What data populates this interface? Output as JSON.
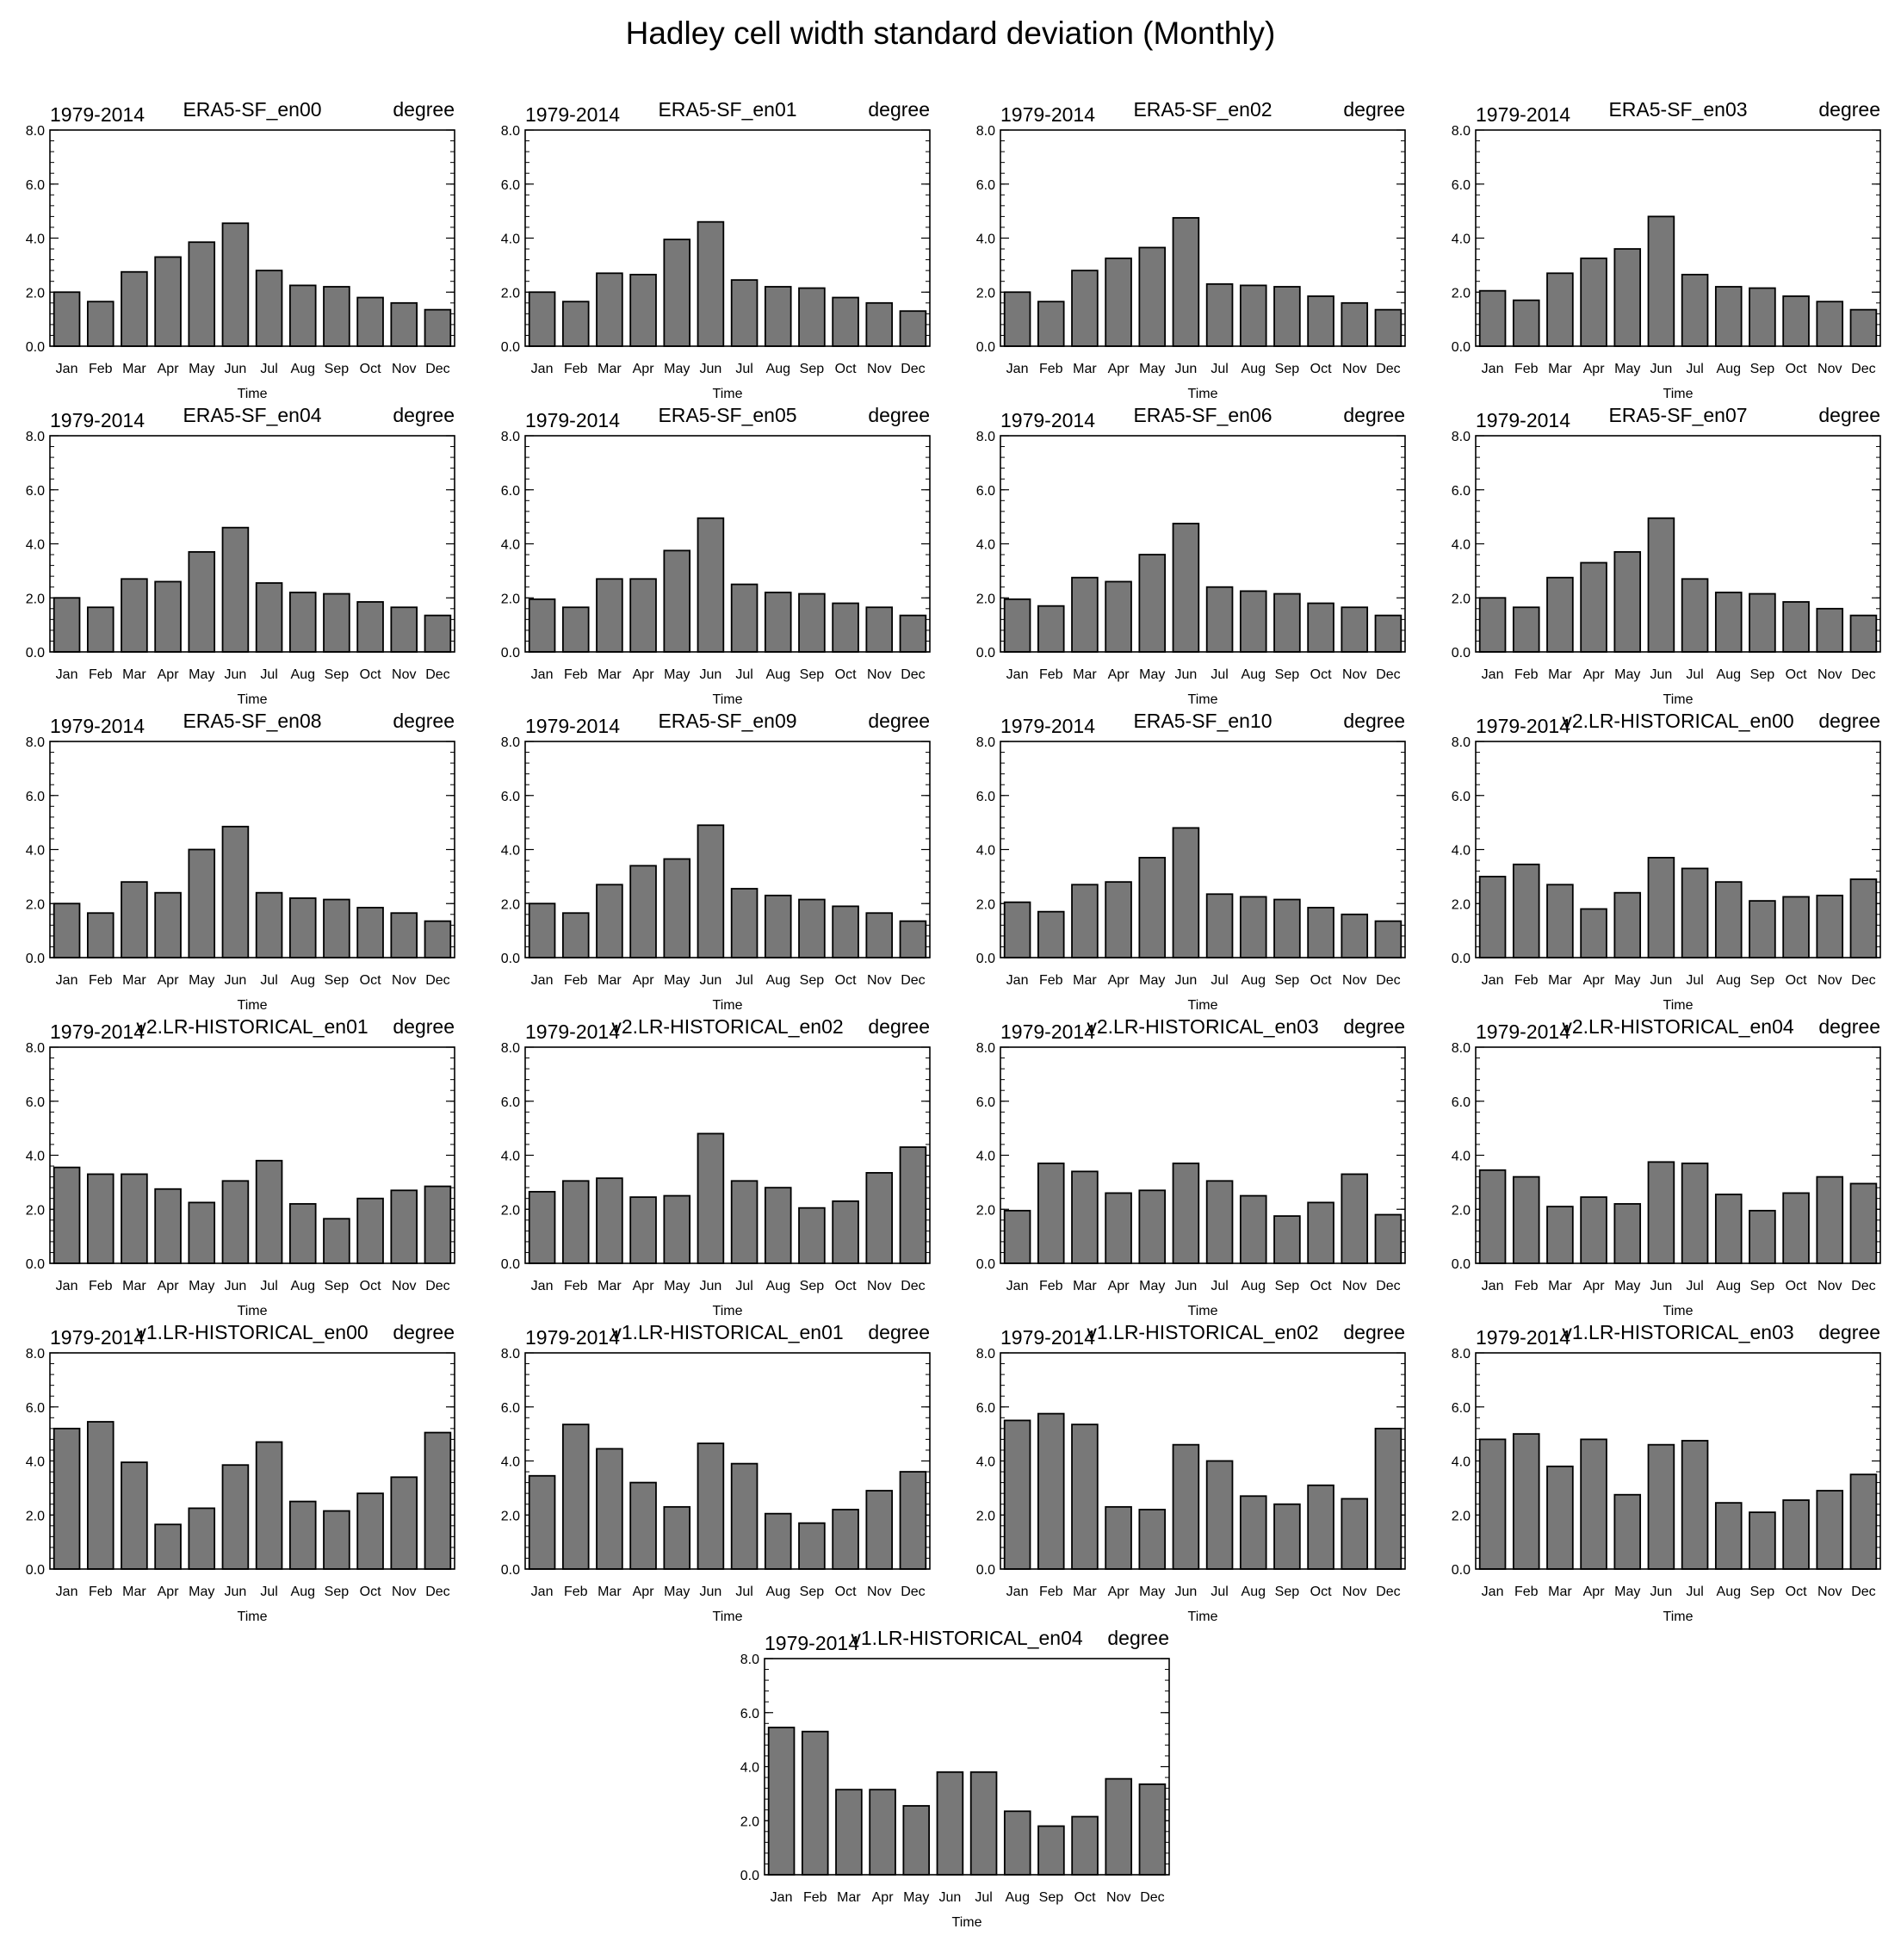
{
  "figure": {
    "title": "Hadley cell width standard deviation (Monthly)"
  },
  "chart_data": [
    {
      "type": "bar",
      "left_title": "1979-2014",
      "title": "ERA5-SF_en00",
      "right_title": "degree",
      "xlabel": "Time",
      "categories": [
        "Jan",
        "Feb",
        "Mar",
        "Apr",
        "May",
        "Jun",
        "Jul",
        "Aug",
        "Sep",
        "Oct",
        "Nov",
        "Dec"
      ],
      "values": [
        2.0,
        1.65,
        2.75,
        3.3,
        3.85,
        4.55,
        2.8,
        2.25,
        2.2,
        1.8,
        1.6,
        1.35
      ],
      "ylim": [
        0,
        8
      ],
      "yticks": [
        "0.0",
        "2.0",
        "4.0",
        "6.0",
        "8.0"
      ],
      "grid": false,
      "color": "#787878"
    },
    {
      "type": "bar",
      "left_title": "1979-2014",
      "title": "ERA5-SF_en01",
      "right_title": "degree",
      "xlabel": "Time",
      "categories": [
        "Jan",
        "Feb",
        "Mar",
        "Apr",
        "May",
        "Jun",
        "Jul",
        "Aug",
        "Sep",
        "Oct",
        "Nov",
        "Dec"
      ],
      "values": [
        2.0,
        1.65,
        2.7,
        2.65,
        3.95,
        4.6,
        2.45,
        2.2,
        2.15,
        1.8,
        1.6,
        1.3
      ],
      "ylim": [
        0,
        8
      ],
      "yticks": [
        "0.0",
        "2.0",
        "4.0",
        "6.0",
        "8.0"
      ],
      "grid": false,
      "color": "#787878"
    },
    {
      "type": "bar",
      "left_title": "1979-2014",
      "title": "ERA5-SF_en02",
      "right_title": "degree",
      "xlabel": "Time",
      "categories": [
        "Jan",
        "Feb",
        "Mar",
        "Apr",
        "May",
        "Jun",
        "Jul",
        "Aug",
        "Sep",
        "Oct",
        "Nov",
        "Dec"
      ],
      "values": [
        2.0,
        1.65,
        2.8,
        3.25,
        3.65,
        4.75,
        2.3,
        2.25,
        2.2,
        1.85,
        1.6,
        1.35
      ],
      "ylim": [
        0,
        8
      ],
      "yticks": [
        "0.0",
        "2.0",
        "4.0",
        "6.0",
        "8.0"
      ],
      "grid": false,
      "color": "#787878"
    },
    {
      "type": "bar",
      "left_title": "1979-2014",
      "title": "ERA5-SF_en03",
      "right_title": "degree",
      "xlabel": "Time",
      "categories": [
        "Jan",
        "Feb",
        "Mar",
        "Apr",
        "May",
        "Jun",
        "Jul",
        "Aug",
        "Sep",
        "Oct",
        "Nov",
        "Dec"
      ],
      "values": [
        2.05,
        1.7,
        2.7,
        3.25,
        3.6,
        4.8,
        2.65,
        2.2,
        2.15,
        1.85,
        1.65,
        1.35
      ],
      "ylim": [
        0,
        8
      ],
      "yticks": [
        "0.0",
        "2.0",
        "4.0",
        "6.0",
        "8.0"
      ],
      "grid": false,
      "color": "#787878"
    },
    {
      "type": "bar",
      "left_title": "1979-2014",
      "title": "ERA5-SF_en04",
      "right_title": "degree",
      "xlabel": "Time",
      "categories": [
        "Jan",
        "Feb",
        "Mar",
        "Apr",
        "May",
        "Jun",
        "Jul",
        "Aug",
        "Sep",
        "Oct",
        "Nov",
        "Dec"
      ],
      "values": [
        2.0,
        1.65,
        2.7,
        2.6,
        3.7,
        4.6,
        2.55,
        2.2,
        2.15,
        1.85,
        1.65,
        1.35
      ],
      "ylim": [
        0,
        8
      ],
      "yticks": [
        "0.0",
        "2.0",
        "4.0",
        "6.0",
        "8.0"
      ],
      "grid": false,
      "color": "#787878"
    },
    {
      "type": "bar",
      "left_title": "1979-2014",
      "title": "ERA5-SF_en05",
      "right_title": "degree",
      "xlabel": "Time",
      "categories": [
        "Jan",
        "Feb",
        "Mar",
        "Apr",
        "May",
        "Jun",
        "Jul",
        "Aug",
        "Sep",
        "Oct",
        "Nov",
        "Dec"
      ],
      "values": [
        1.95,
        1.65,
        2.7,
        2.7,
        3.75,
        4.95,
        2.5,
        2.2,
        2.15,
        1.8,
        1.65,
        1.35
      ],
      "ylim": [
        0,
        8
      ],
      "yticks": [
        "0.0",
        "2.0",
        "4.0",
        "6.0",
        "8.0"
      ],
      "grid": false,
      "color": "#787878"
    },
    {
      "type": "bar",
      "left_title": "1979-2014",
      "title": "ERA5-SF_en06",
      "right_title": "degree",
      "xlabel": "Time",
      "categories": [
        "Jan",
        "Feb",
        "Mar",
        "Apr",
        "May",
        "Jun",
        "Jul",
        "Aug",
        "Sep",
        "Oct",
        "Nov",
        "Dec"
      ],
      "values": [
        1.95,
        1.7,
        2.75,
        2.6,
        3.6,
        4.75,
        2.4,
        2.25,
        2.15,
        1.8,
        1.65,
        1.35
      ],
      "ylim": [
        0,
        8
      ],
      "yticks": [
        "0.0",
        "2.0",
        "4.0",
        "6.0",
        "8.0"
      ],
      "grid": false,
      "color": "#787878"
    },
    {
      "type": "bar",
      "left_title": "1979-2014",
      "title": "ERA5-SF_en07",
      "right_title": "degree",
      "xlabel": "Time",
      "categories": [
        "Jan",
        "Feb",
        "Mar",
        "Apr",
        "May",
        "Jun",
        "Jul",
        "Aug",
        "Sep",
        "Oct",
        "Nov",
        "Dec"
      ],
      "values": [
        2.0,
        1.65,
        2.75,
        3.3,
        3.7,
        4.95,
        2.7,
        2.2,
        2.15,
        1.85,
        1.6,
        1.35
      ],
      "ylim": [
        0,
        8
      ],
      "yticks": [
        "0.0",
        "2.0",
        "4.0",
        "6.0",
        "8.0"
      ],
      "grid": false,
      "color": "#787878"
    },
    {
      "type": "bar",
      "left_title": "1979-2014",
      "title": "ERA5-SF_en08",
      "right_title": "degree",
      "xlabel": "Time",
      "categories": [
        "Jan",
        "Feb",
        "Mar",
        "Apr",
        "May",
        "Jun",
        "Jul",
        "Aug",
        "Sep",
        "Oct",
        "Nov",
        "Dec"
      ],
      "values": [
        2.0,
        1.65,
        2.8,
        2.4,
        4.0,
        4.85,
        2.4,
        2.2,
        2.15,
        1.85,
        1.65,
        1.35
      ],
      "ylim": [
        0,
        8
      ],
      "yticks": [
        "0.0",
        "2.0",
        "4.0",
        "6.0",
        "8.0"
      ],
      "grid": false,
      "color": "#787878"
    },
    {
      "type": "bar",
      "left_title": "1979-2014",
      "title": "ERA5-SF_en09",
      "right_title": "degree",
      "xlabel": "Time",
      "categories": [
        "Jan",
        "Feb",
        "Mar",
        "Apr",
        "May",
        "Jun",
        "Jul",
        "Aug",
        "Sep",
        "Oct",
        "Nov",
        "Dec"
      ],
      "values": [
        2.0,
        1.65,
        2.7,
        3.4,
        3.65,
        4.9,
        2.55,
        2.3,
        2.15,
        1.9,
        1.65,
        1.35
      ],
      "ylim": [
        0,
        8
      ],
      "yticks": [
        "0.0",
        "2.0",
        "4.0",
        "6.0",
        "8.0"
      ],
      "grid": false,
      "color": "#787878"
    },
    {
      "type": "bar",
      "left_title": "1979-2014",
      "title": "ERA5-SF_en10",
      "right_title": "degree",
      "xlabel": "Time",
      "categories": [
        "Jan",
        "Feb",
        "Mar",
        "Apr",
        "May",
        "Jun",
        "Jul",
        "Aug",
        "Sep",
        "Oct",
        "Nov",
        "Dec"
      ],
      "values": [
        2.05,
        1.7,
        2.7,
        2.8,
        3.7,
        4.8,
        2.35,
        2.25,
        2.15,
        1.85,
        1.6,
        1.35
      ],
      "ylim": [
        0,
        8
      ],
      "yticks": [
        "0.0",
        "2.0",
        "4.0",
        "6.0",
        "8.0"
      ],
      "grid": false,
      "color": "#787878"
    },
    {
      "type": "bar",
      "left_title": "1979-2014",
      "title": "v2.LR-HISTORICAL_en00",
      "right_title": "degree",
      "xlabel": "Time",
      "categories": [
        "Jan",
        "Feb",
        "Mar",
        "Apr",
        "May",
        "Jun",
        "Jul",
        "Aug",
        "Sep",
        "Oct",
        "Nov",
        "Dec"
      ],
      "values": [
        3.0,
        3.45,
        2.7,
        1.8,
        2.4,
        3.7,
        3.3,
        2.8,
        2.1,
        2.25,
        2.3,
        2.9
      ],
      "ylim": [
        0,
        8
      ],
      "yticks": [
        "0.0",
        "2.0",
        "4.0",
        "6.0",
        "8.0"
      ],
      "grid": false,
      "color": "#787878"
    },
    {
      "type": "bar",
      "left_title": "1979-2014",
      "title": "v2.LR-HISTORICAL_en01",
      "right_title": "degree",
      "xlabel": "Time",
      "categories": [
        "Jan",
        "Feb",
        "Mar",
        "Apr",
        "May",
        "Jun",
        "Jul",
        "Aug",
        "Sep",
        "Oct",
        "Nov",
        "Dec"
      ],
      "values": [
        3.55,
        3.3,
        3.3,
        2.75,
        2.25,
        3.05,
        3.8,
        2.2,
        1.65,
        2.4,
        2.7,
        2.85
      ],
      "ylim": [
        0,
        8
      ],
      "yticks": [
        "0.0",
        "2.0",
        "4.0",
        "6.0",
        "8.0"
      ],
      "grid": false,
      "color": "#787878"
    },
    {
      "type": "bar",
      "left_title": "1979-2014",
      "title": "v2.LR-HISTORICAL_en02",
      "right_title": "degree",
      "xlabel": "Time",
      "categories": [
        "Jan",
        "Feb",
        "Mar",
        "Apr",
        "May",
        "Jun",
        "Jul",
        "Aug",
        "Sep",
        "Oct",
        "Nov",
        "Dec"
      ],
      "values": [
        2.65,
        3.05,
        3.15,
        2.45,
        2.5,
        4.8,
        3.05,
        2.8,
        2.05,
        2.3,
        3.35,
        4.3
      ],
      "ylim": [
        0,
        8
      ],
      "yticks": [
        "0.0",
        "2.0",
        "4.0",
        "6.0",
        "8.0"
      ],
      "grid": false,
      "color": "#787878"
    },
    {
      "type": "bar",
      "left_title": "1979-2014",
      "title": "v2.LR-HISTORICAL_en03",
      "right_title": "degree",
      "xlabel": "Time",
      "categories": [
        "Jan",
        "Feb",
        "Mar",
        "Apr",
        "May",
        "Jun",
        "Jul",
        "Aug",
        "Sep",
        "Oct",
        "Nov",
        "Dec"
      ],
      "values": [
        1.95,
        3.7,
        3.4,
        2.6,
        2.7,
        3.7,
        3.05,
        2.5,
        1.75,
        2.25,
        3.3,
        1.8
      ],
      "ylim": [
        0,
        8
      ],
      "yticks": [
        "0.0",
        "2.0",
        "4.0",
        "6.0",
        "8.0"
      ],
      "grid": false,
      "color": "#787878"
    },
    {
      "type": "bar",
      "left_title": "1979-2014",
      "title": "v2.LR-HISTORICAL_en04",
      "right_title": "degree",
      "xlabel": "Time",
      "categories": [
        "Jan",
        "Feb",
        "Mar",
        "Apr",
        "May",
        "Jun",
        "Jul",
        "Aug",
        "Sep",
        "Oct",
        "Nov",
        "Dec"
      ],
      "values": [
        3.45,
        3.2,
        2.1,
        2.45,
        2.2,
        3.75,
        3.7,
        2.55,
        1.95,
        2.6,
        3.2,
        2.95
      ],
      "ylim": [
        0,
        8
      ],
      "yticks": [
        "0.0",
        "2.0",
        "4.0",
        "6.0",
        "8.0"
      ],
      "grid": false,
      "color": "#787878"
    },
    {
      "type": "bar",
      "left_title": "1979-2014",
      "title": "v1.LR-HISTORICAL_en00",
      "right_title": "degree",
      "xlabel": "Time",
      "categories": [
        "Jan",
        "Feb",
        "Mar",
        "Apr",
        "May",
        "Jun",
        "Jul",
        "Aug",
        "Sep",
        "Oct",
        "Nov",
        "Dec"
      ],
      "values": [
        5.2,
        5.45,
        3.95,
        1.65,
        2.25,
        3.85,
        4.7,
        2.5,
        2.15,
        2.8,
        3.4,
        5.05
      ],
      "ylim": [
        0,
        8
      ],
      "yticks": [
        "0.0",
        "2.0",
        "4.0",
        "6.0",
        "8.0"
      ],
      "grid": false,
      "color": "#787878"
    },
    {
      "type": "bar",
      "left_title": "1979-2014",
      "title": "v1.LR-HISTORICAL_en01",
      "right_title": "degree",
      "xlabel": "Time",
      "categories": [
        "Jan",
        "Feb",
        "Mar",
        "Apr",
        "May",
        "Jun",
        "Jul",
        "Aug",
        "Sep",
        "Oct",
        "Nov",
        "Dec"
      ],
      "values": [
        3.45,
        5.35,
        4.45,
        3.2,
        2.3,
        4.65,
        3.9,
        2.05,
        1.7,
        2.2,
        2.9,
        3.6
      ],
      "ylim": [
        0,
        8
      ],
      "yticks": [
        "0.0",
        "2.0",
        "4.0",
        "6.0",
        "8.0"
      ],
      "grid": false,
      "color": "#787878"
    },
    {
      "type": "bar",
      "left_title": "1979-2014",
      "title": "v1.LR-HISTORICAL_en02",
      "right_title": "degree",
      "xlabel": "Time",
      "categories": [
        "Jan",
        "Feb",
        "Mar",
        "Apr",
        "May",
        "Jun",
        "Jul",
        "Aug",
        "Sep",
        "Oct",
        "Nov",
        "Dec"
      ],
      "values": [
        5.5,
        5.75,
        5.35,
        2.3,
        2.2,
        4.6,
        4.0,
        2.7,
        2.4,
        3.1,
        2.6,
        5.2
      ],
      "ylim": [
        0,
        8
      ],
      "yticks": [
        "0.0",
        "2.0",
        "4.0",
        "6.0",
        "8.0"
      ],
      "grid": false,
      "color": "#787878"
    },
    {
      "type": "bar",
      "left_title": "1979-2014",
      "title": "v1.LR-HISTORICAL_en03",
      "right_title": "degree",
      "xlabel": "Time",
      "categories": [
        "Jan",
        "Feb",
        "Mar",
        "Apr",
        "May",
        "Jun",
        "Jul",
        "Aug",
        "Sep",
        "Oct",
        "Nov",
        "Dec"
      ],
      "values": [
        4.8,
        5.0,
        3.8,
        4.8,
        2.75,
        4.6,
        4.75,
        2.45,
        2.1,
        2.55,
        2.9,
        3.5
      ],
      "ylim": [
        0,
        8
      ],
      "yticks": [
        "0.0",
        "2.0",
        "4.0",
        "6.0",
        "8.0"
      ],
      "grid": false,
      "color": "#787878"
    },
    {
      "type": "bar",
      "left_title": "1979-2014",
      "title": "v1.LR-HISTORICAL_en04",
      "right_title": "degree",
      "xlabel": "Time",
      "categories": [
        "Jan",
        "Feb",
        "Mar",
        "Apr",
        "May",
        "Jun",
        "Jul",
        "Aug",
        "Sep",
        "Oct",
        "Nov",
        "Dec"
      ],
      "values": [
        5.45,
        5.3,
        3.15,
        3.15,
        2.55,
        3.8,
        3.8,
        2.35,
        1.8,
        2.15,
        3.55,
        3.35
      ],
      "ylim": [
        0,
        8
      ],
      "yticks": [
        "0.0",
        "2.0",
        "4.0",
        "6.0",
        "8.0"
      ],
      "grid": false,
      "color": "#787878"
    }
  ]
}
